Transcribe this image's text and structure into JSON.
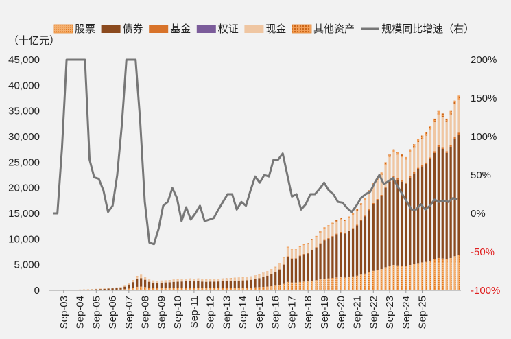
{
  "chart_data": {
    "type": "bar",
    "subtype": "stacked-bar-with-line",
    "unit_label": "（十亿元）",
    "colors": {
      "股票": "#e8862a",
      "债券": "#8b4a1e",
      "基金": "#d8732a",
      "权证": "#7b5c9a",
      "现金": "#efc6a2",
      "其他资产": "#e3822e",
      "规模同比增速（右）": "#777777",
      "negative_axis": "#e02020"
    },
    "legend": [
      {
        "name": "股票",
        "marker": "hatch"
      },
      {
        "name": "债券",
        "marker": "box"
      },
      {
        "name": "基金",
        "marker": "box"
      },
      {
        "name": "权证",
        "marker": "box"
      },
      {
        "name": "现金",
        "marker": "box"
      },
      {
        "name": "其他资产",
        "marker": "hatch"
      },
      {
        "name": "规模同比增速（右）",
        "marker": "line"
      }
    ],
    "y_left": {
      "min": 0,
      "max": 45000,
      "step": 5000,
      "ticks": [
        "0",
        "5,000",
        "10,000",
        "15,000",
        "20,000",
        "25,000",
        "30,000",
        "35,000",
        "40,000",
        "45,000"
      ]
    },
    "y_right": {
      "min": -100,
      "max": 200,
      "step": 50,
      "ticks": [
        "-100%",
        "-50%",
        "0%",
        "50%",
        "100%",
        "150%",
        "200%"
      ]
    },
    "x_tick_labels": [
      "Sep-03",
      "Sep-04",
      "Sep-05",
      "Sep-06",
      "Sep-07",
      "Sep-08",
      "Sep-09",
      "Sep-10",
      "Sep-11",
      "Sep-12",
      "Sep-13",
      "Sep-14",
      "Sep-15",
      "Sep-16",
      "Sep-17",
      "Sep-18",
      "Sep-19",
      "Sep-20",
      "Sep-21",
      "Sep-22",
      "Sep-23",
      "Sep-24",
      "Sep-25"
    ],
    "stack_order": [
      "股票",
      "债券",
      "基金",
      "权证",
      "现金",
      "其他资产"
    ],
    "quarterly_totals": [
      10,
      20,
      40,
      60,
      80,
      100,
      130,
      160,
      200,
      230,
      260,
      300,
      350,
      400,
      450,
      500,
      550,
      650,
      900,
      1400,
      2000,
      2800,
      3000,
      2600,
      2100,
      1900,
      1800,
      1900,
      1950,
      2000,
      2100,
      2150,
      2200,
      2250,
      2300,
      2250,
      2300,
      2200,
      2150,
      2200,
      2200,
      2250,
      2300,
      2350,
      2400,
      2450,
      2500,
      2550,
      2600,
      2700,
      2900,
      3100,
      3400,
      3700,
      4100,
      4600,
      5300,
      6500,
      8500,
      8000,
      8000,
      8600,
      9000,
      9200,
      10000,
      10600,
      11500,
      12300,
      12700,
      13200,
      13700,
      14100,
      13800,
      14400,
      15000,
      15800,
      17000,
      18000,
      19500,
      21000,
      22000,
      23000,
      25000,
      26500,
      27500,
      27000,
      26500,
      26000,
      27500,
      28500,
      29500,
      30200,
      30800,
      32000,
      33500,
      35000,
      34500,
      33500,
      35000,
      37000,
      38000
    ],
    "shares": {
      "股票": [
        0.33,
        0.25,
        0.2,
        0.18
      ],
      "债券": [
        0.05,
        0.55,
        0.55,
        0.62
      ],
      "基金": [
        0.03,
        0.0,
        0.01,
        0.01
      ],
      "权证": [
        0.0,
        0.0,
        0.0,
        0.0
      ],
      "现金": [
        0.57,
        0.18,
        0.22,
        0.17
      ],
      "其他资产": [
        0.02,
        0.02,
        0.02,
        0.02
      ]
    },
    "growth_yoy_pct": [
      0,
      0,
      85,
      210,
      210,
      210,
      210,
      210,
      70,
      47,
      45,
      30,
      2,
      10,
      50,
      115,
      210,
      210,
      210,
      120,
      15,
      -38,
      -40,
      -20,
      10,
      15,
      33,
      20,
      -10,
      8,
      -8,
      0,
      10,
      -10,
      -8,
      -6,
      5,
      15,
      25,
      25,
      5,
      15,
      10,
      30,
      48,
      40,
      50,
      48,
      70,
      70,
      78,
      50,
      22,
      25,
      5,
      12,
      25,
      25,
      32,
      40,
      30,
      25,
      15,
      14,
      7,
      2,
      10,
      20,
      25,
      28,
      40,
      50,
      38,
      42,
      46,
      35,
      25,
      15,
      5,
      5,
      12,
      5,
      10,
      18,
      15,
      17,
      15,
      20,
      18
    ]
  }
}
